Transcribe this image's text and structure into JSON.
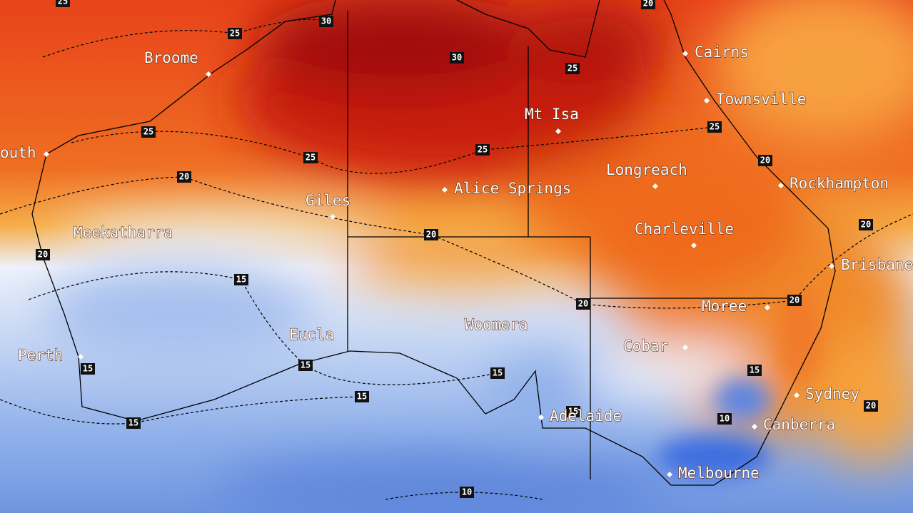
{
  "map": {
    "cities": [
      "Broome",
      "Cairns",
      "Townsville",
      "Mt Isa",
      "outh",
      "Longreach",
      "Rockhampton",
      "Alice Springs",
      "Giles",
      "Meekatharra",
      "Charleville",
      "Brisbane",
      "Moree",
      "Woomera",
      "Cobar",
      "Eucla",
      "Perth",
      "Sydney",
      "Adelaide",
      "Canberra",
      "Melbourne"
    ],
    "contour_labels": [
      "25",
      "30",
      "25",
      "30",
      "25",
      "20",
      "25",
      "25",
      "25",
      "25",
      "20",
      "20",
      "20",
      "20",
      "20",
      "15",
      "20",
      "20",
      "15",
      "15",
      "15",
      "15",
      "15",
      "15",
      "20",
      "10",
      "15",
      "10"
    ]
  }
}
